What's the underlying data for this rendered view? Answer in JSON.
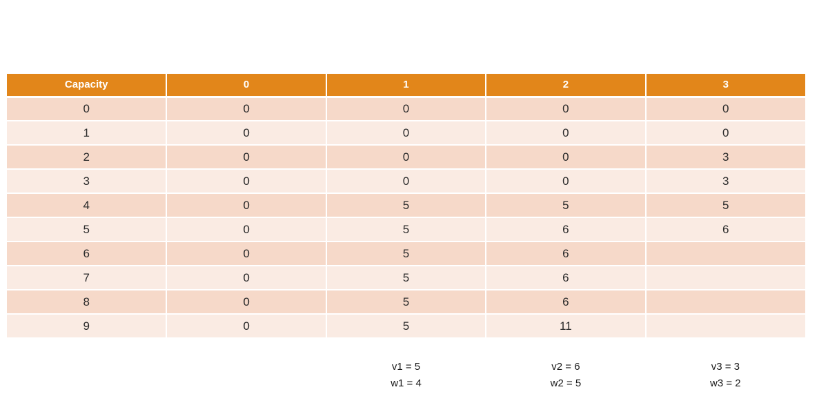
{
  "chart_data": {
    "type": "table",
    "title": "",
    "columns": [
      "Capacity",
      "0",
      "1",
      "2",
      "3"
    ],
    "rows": [
      [
        "0",
        "0",
        "0",
        "0",
        "0"
      ],
      [
        "1",
        "0",
        "0",
        "0",
        "0"
      ],
      [
        "2",
        "0",
        "0",
        "0",
        "3"
      ],
      [
        "3",
        "0",
        "0",
        "0",
        "3"
      ],
      [
        "4",
        "0",
        "5",
        "5",
        "5"
      ],
      [
        "5",
        "0",
        "5",
        "6",
        "6"
      ],
      [
        "6",
        "0",
        "5",
        "6",
        ""
      ],
      [
        "7",
        "0",
        "5",
        "6",
        ""
      ],
      [
        "8",
        "0",
        "5",
        "6",
        ""
      ],
      [
        "9",
        "0",
        "5",
        "11",
        ""
      ]
    ],
    "layout_hints": {
      "banded_rows": true,
      "header_style": "solid-orange",
      "empty_cells": [
        [
          6,
          4
        ],
        [
          7,
          4
        ],
        [
          8,
          4
        ],
        [
          9,
          4
        ]
      ]
    }
  },
  "items": [
    {
      "value_label": "v1 = 5",
      "weight_label": "w1 = 4"
    },
    {
      "value_label": "v2 = 6",
      "weight_label": "w2 = 5"
    },
    {
      "value_label": "v3 = 3",
      "weight_label": "w3 = 2"
    }
  ],
  "colors": {
    "header_bg": "#E2861A",
    "row_even_bg": "#F6D9C9",
    "row_odd_bg": "#FAEBE3",
    "header_text": "#FFFFFF",
    "cell_text": "#2B2B2B",
    "annotation_text": "#1A1A1A",
    "separator": "#FFFFFF"
  }
}
